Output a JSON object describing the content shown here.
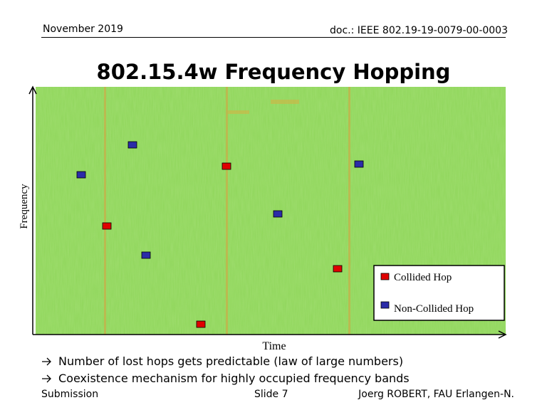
{
  "header": {
    "date": "November 2019",
    "doc": "doc.: IEEE 802.19-19-0079-00-0003"
  },
  "title": "802.15.4w Frequency Hopping",
  "plot": {
    "y_axis_label": "Frequency",
    "x_axis_label": "Time"
  },
  "legend": {
    "items": [
      "Collided Hop",
      "Non-Collided Hop"
    ]
  },
  "bullets": [
    "Number of lost hops gets predictable (law of large numbers)",
    "Coexistence mechanism for highly occupied frequency bands"
  ],
  "footer": {
    "left": "Submission",
    "center": "Slide 7",
    "right": "Joerg ROBERT, FAU Erlangen-N."
  }
}
